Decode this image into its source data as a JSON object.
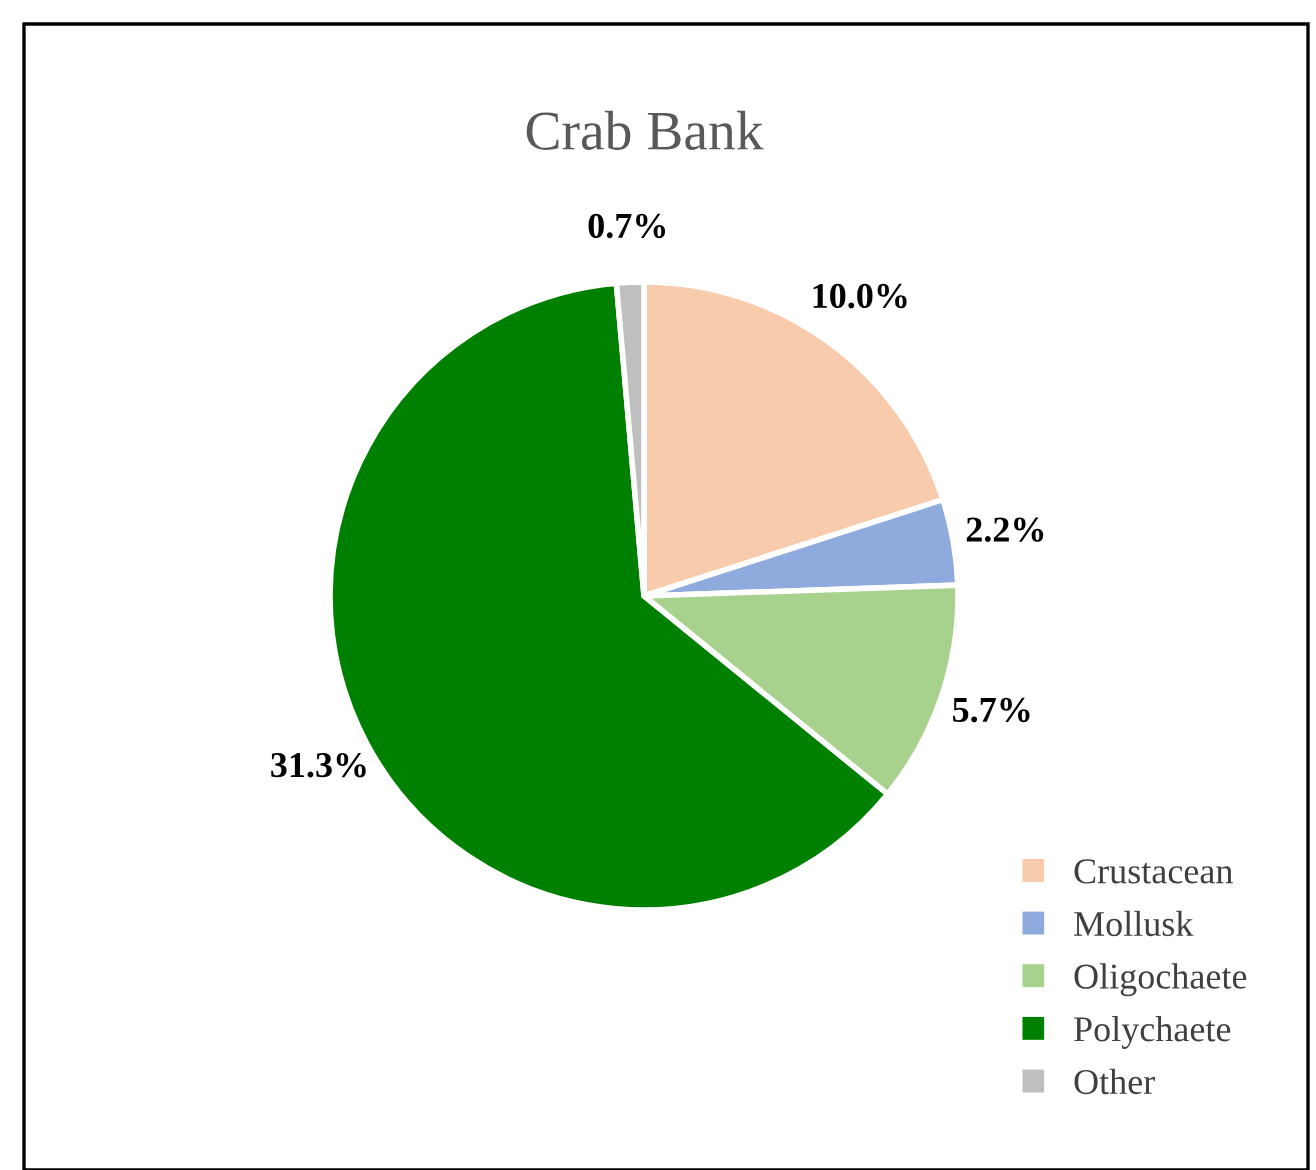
{
  "chart_data": {
    "type": "pie",
    "title": "Crab Bank",
    "categories": [
      "Crustacean",
      "Mollusk",
      "Oligochaete",
      "Polychaete",
      "Other"
    ],
    "values": [
      10.0,
      2.2,
      5.7,
      31.3,
      0.7
    ],
    "colors": [
      "#f8cbad",
      "#8faadc",
      "#a9d18e",
      "#008000",
      "#bfbfbf"
    ],
    "value_labels": [
      "10.0%",
      "2.2%",
      "5.7%",
      "31.3%",
      "0.7%"
    ],
    "legend": "bottom right"
  }
}
